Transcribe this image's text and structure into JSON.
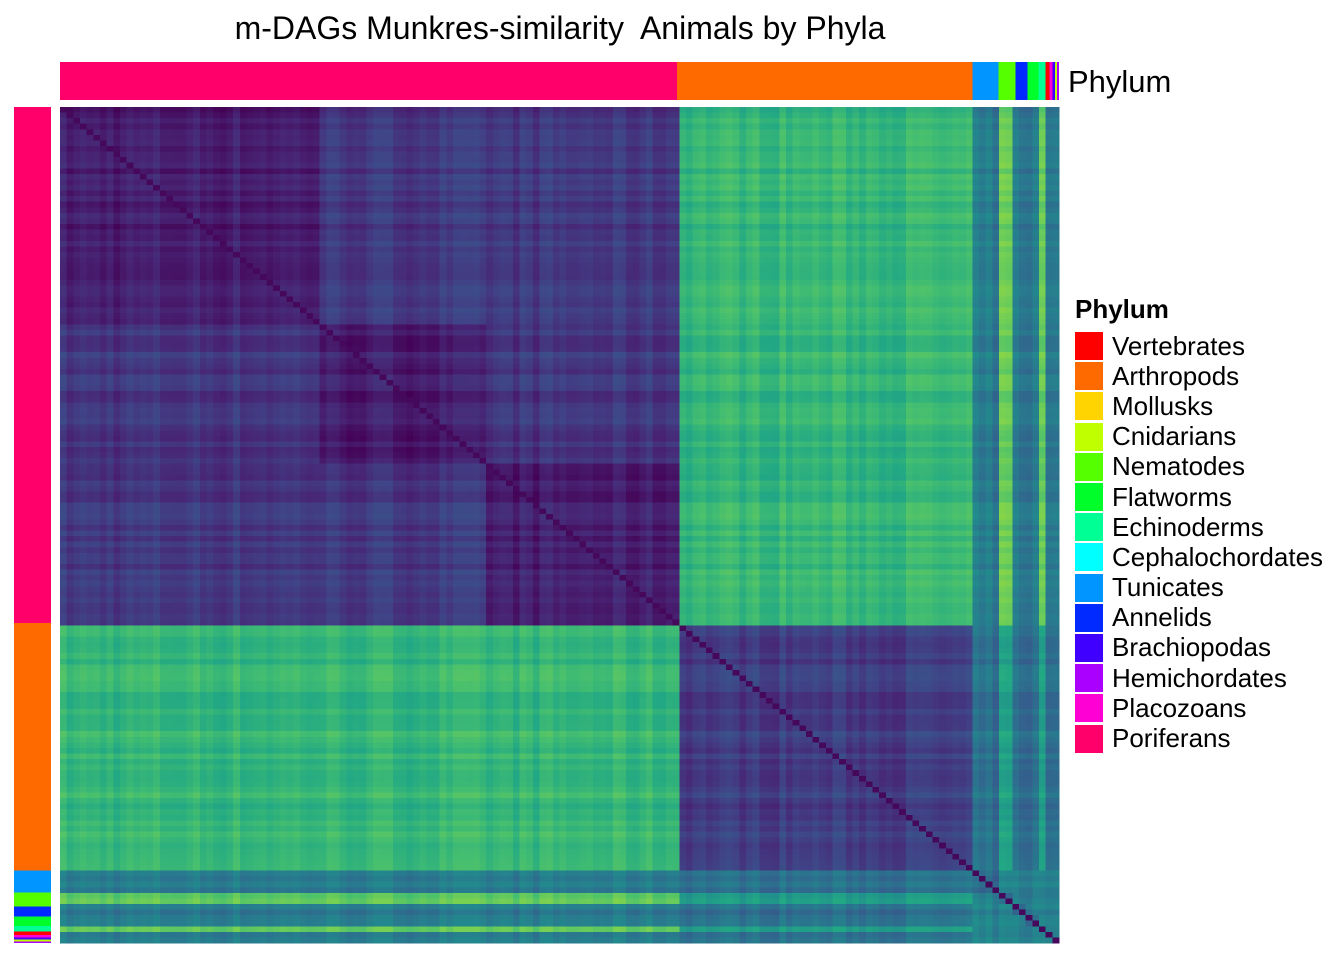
{
  "chart_data": {
    "type": "heatmap",
    "title": "m-DAGs Munkres-similarity  Animals by Phyla",
    "annotation_label": "Phylum",
    "legend": {
      "title": "Phylum",
      "placement": "right",
      "entries": [
        {
          "name": "Vertebrates",
          "color": "#FF0000"
        },
        {
          "name": "Arthropods",
          "color": "#FF6A00"
        },
        {
          "name": "Mollusks",
          "color": "#FFD400"
        },
        {
          "name": "Cnidarians",
          "color": "#C0FF00"
        },
        {
          "name": "Nematodes",
          "color": "#55FF00"
        },
        {
          "name": "Flatworms",
          "color": "#00FF2A"
        },
        {
          "name": "Echinoderms",
          "color": "#00FF95"
        },
        {
          "name": "Cephalochordates",
          "color": "#00FFFF"
        },
        {
          "name": "Tunicates",
          "color": "#0095FF"
        },
        {
          "name": "Annelids",
          "color": "#002AFF"
        },
        {
          "name": "Brachiopodas",
          "color": "#4000FF"
        },
        {
          "name": "Hemichordates",
          "color": "#AA00FF"
        },
        {
          "name": "Placozoans",
          "color": "#FF00D4"
        },
        {
          "name": "Poriferans",
          "color": "#FF006A"
        }
      ]
    },
    "groups": [
      {
        "phylum": "Poriferans",
        "fraction": 0.6175
      },
      {
        "phylum": "Arthropods",
        "fraction": 0.296
      },
      {
        "phylum": "Tunicates",
        "fraction": 0.026
      },
      {
        "phylum": "Nematodes",
        "fraction": 0.017
      },
      {
        "phylum": "Annelids",
        "fraction": 0.012
      },
      {
        "phylum": "Flatworms",
        "fraction": 0.011
      },
      {
        "phylum": "Echinoderms",
        "fraction": 0.007
      },
      {
        "phylum": "Vertebrates",
        "fraction": 0.004
      },
      {
        "phylum": "Placozoans",
        "fraction": 0.003
      },
      {
        "phylum": "Brachiopodas",
        "fraction": 0.0025
      },
      {
        "phylum": "Cnidarians",
        "fraction": 0.002
      },
      {
        "phylum": "Hemichordates",
        "fraction": 0.002
      }
    ],
    "color_scale": "viridis",
    "grid": false
  }
}
